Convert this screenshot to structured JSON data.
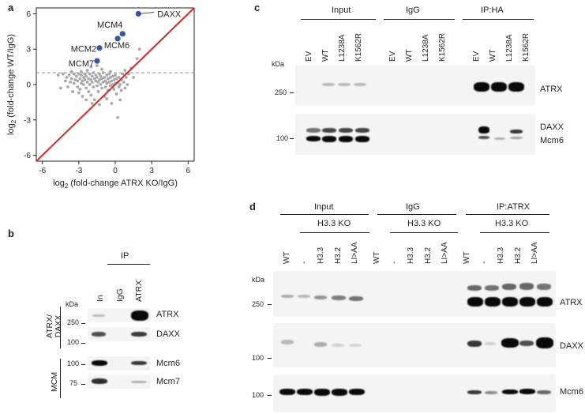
{
  "panels": {
    "a": "a",
    "b": "b",
    "c": "c",
    "d": "d"
  },
  "chart_data": {
    "type": "scatter",
    "xlabel": "log2 (fold-change ATRX KO/IgG)",
    "ylabel": "log2 (fold-change WT/IgG)",
    "xlabel_base": "log",
    "xlabel_sub": "2",
    "xlabel_rest": " (fold-change ATRX KO/IgG)",
    "ylabel_base": "log",
    "ylabel_sub": "2",
    "ylabel_rest": " (fold-change WT/IgG)",
    "xlim": [
      -6.5,
      6.5
    ],
    "ylim": [
      -6.5,
      6.5
    ],
    "xticks": [
      -6,
      -3,
      0,
      3,
      6
    ],
    "yticks": [
      -6,
      -3,
      0,
      3,
      6
    ],
    "threshold_y": 1,
    "diagonal": "y = x",
    "colors": {
      "background": "#a9a9a9",
      "highlight": "#3a57a4",
      "diagonal": "#d42a2a",
      "threshold": "#8c8c8c"
    },
    "highlighted": [
      {
        "name": "DAXX",
        "x": 1.9,
        "y": 6.0
      },
      {
        "name": "MCM4",
        "x": 0.6,
        "y": 4.3
      },
      {
        "name": "MCM6",
        "x": 0.2,
        "y": 3.9
      },
      {
        "name": "MCM2",
        "x": -1.3,
        "y": 3.1
      },
      {
        "name": "MCM7",
        "x": -1.5,
        "y": 2.0
      }
    ],
    "background_points": [
      [
        -4.7,
        0.8
      ],
      [
        -4.5,
        -0.3
      ],
      [
        -4.3,
        0.9
      ],
      [
        -4.1,
        0.3
      ],
      [
        -4.0,
        0.6
      ],
      [
        -3.9,
        -0.2
      ],
      [
        -3.8,
        0.8
      ],
      [
        -3.7,
        0.2
      ],
      [
        -3.6,
        0.5
      ],
      [
        -3.5,
        -0.6
      ],
      [
        -3.4,
        0.9
      ],
      [
        -3.4,
        0.1
      ],
      [
        -3.3,
        0.4
      ],
      [
        -3.2,
        0.7
      ],
      [
        -3.1,
        -0.2
      ],
      [
        -3.1,
        0.3
      ],
      [
        -3.0,
        0.9
      ],
      [
        -2.9,
        0.5
      ],
      [
        -2.9,
        -0.4
      ],
      [
        -2.8,
        0.1
      ],
      [
        -2.8,
        0.8
      ],
      [
        -2.7,
        0.3
      ],
      [
        -2.7,
        -1.0
      ],
      [
        -2.6,
        0.6
      ],
      [
        -2.6,
        0.0
      ],
      [
        -2.5,
        0.9
      ],
      [
        -2.5,
        0.4
      ],
      [
        -2.4,
        -0.3
      ],
      [
        -2.4,
        0.7
      ],
      [
        -2.3,
        0.2
      ],
      [
        -2.3,
        1.2
      ],
      [
        -2.2,
        -0.6
      ],
      [
        -2.2,
        0.5
      ],
      [
        -2.1,
        0.9
      ],
      [
        -2.1,
        0.0
      ],
      [
        -2.0,
        0.4
      ],
      [
        -2.0,
        -0.9
      ],
      [
        -1.9,
        0.7
      ],
      [
        -1.9,
        0.2
      ],
      [
        -1.8,
        -0.2
      ],
      [
        -1.8,
        1.0
      ],
      [
        -1.7,
        0.5
      ],
      [
        -1.7,
        -1.3
      ],
      [
        -1.6,
        0.3
      ],
      [
        -1.6,
        0.8
      ],
      [
        -1.5,
        -0.1
      ],
      [
        -1.5,
        0.6
      ],
      [
        -1.4,
        0.2
      ],
      [
        -1.4,
        -0.6
      ],
      [
        -1.3,
        0.9
      ],
      [
        -1.3,
        0.4
      ],
      [
        -1.2,
        0.0
      ],
      [
        -1.2,
        0.7
      ],
      [
        -1.1,
        -0.3
      ],
      [
        -1.1,
        0.5
      ],
      [
        -1.0,
        1.0
      ],
      [
        -1.0,
        0.2
      ],
      [
        -0.9,
        -1.0
      ],
      [
        -0.9,
        0.6
      ],
      [
        -0.8,
        0.3
      ],
      [
        -0.8,
        -0.2
      ],
      [
        -0.7,
        0.8
      ],
      [
        -0.7,
        0.1
      ],
      [
        -0.6,
        0.5
      ],
      [
        -0.6,
        -0.5
      ],
      [
        -0.5,
        0.9
      ],
      [
        -0.5,
        0.2
      ],
      [
        -0.4,
        -0.1
      ],
      [
        -0.4,
        0.6
      ],
      [
        -0.3,
        0.3
      ],
      [
        -0.3,
        -1.6
      ],
      [
        -0.2,
        0.7
      ],
      [
        -0.2,
        0.0
      ],
      [
        -0.1,
        0.4
      ],
      [
        -0.1,
        -0.4
      ],
      [
        0.0,
        0.8
      ],
      [
        0.0,
        0.1
      ],
      [
        0.1,
        -0.8
      ],
      [
        0.1,
        0.5
      ],
      [
        0.2,
        0.2
      ],
      [
        0.2,
        -2.8
      ],
      [
        0.3,
        -0.2
      ],
      [
        0.3,
        0.6
      ],
      [
        0.4,
        0.0
      ],
      [
        0.5,
        0.4
      ],
      [
        0.5,
        -0.5
      ],
      [
        0.6,
        0.9
      ],
      [
        0.7,
        0.2
      ],
      [
        0.8,
        -0.3
      ],
      [
        0.9,
        0.6
      ],
      [
        1.0,
        0.0
      ],
      [
        1.1,
        0.9
      ],
      [
        1.3,
        1.4
      ],
      [
        1.5,
        0.6
      ],
      [
        1.8,
        2.2
      ],
      [
        2.0,
        3.0
      ],
      [
        -2.4,
        -1.3
      ],
      [
        -3.0,
        -0.7
      ],
      [
        -1.9,
        -1.6
      ],
      [
        -0.7,
        -1.2
      ],
      [
        0.4,
        -1.3
      ],
      [
        -1.3,
        -1.7
      ],
      [
        -2.8,
        1.1
      ],
      [
        -3.6,
        1.1
      ],
      [
        -1.1,
        1.3
      ],
      [
        -0.4,
        1.1
      ],
      [
        0.8,
        1.2
      ],
      [
        -2.0,
        1.5
      ],
      [
        -1.5,
        1.6
      ]
    ]
  },
  "panel_b": {
    "ip_header": "IP",
    "lanes": [
      "In",
      "IgG",
      "ATRX"
    ],
    "kda": "kDa",
    "markers": [
      "250",
      "100",
      "100",
      "75"
    ],
    "groups": [
      "ATRX/ DAXX",
      "MCM"
    ],
    "proteins": [
      "ATRX",
      "DAXX",
      "Mcm6",
      "Mcm7"
    ]
  },
  "panel_c": {
    "groups": [
      "Input",
      "IgG",
      "IP:HA"
    ],
    "lanes": [
      "EV",
      "WT",
      "L1238A",
      "K1562R",
      "EV",
      "WT",
      "L1238A",
      "K1562R",
      "EV",
      "WT",
      "L1238A",
      "K1562R"
    ],
    "kda": "kDa",
    "markers": [
      "250",
      "100"
    ],
    "proteins": [
      "ATRX",
      "DAXX",
      "Mcm6"
    ]
  },
  "panel_d": {
    "groups": [
      "Input",
      "IgG",
      "IP:ATRX"
    ],
    "subgroup": "H3.3 KO",
    "lanes": [
      "WT",
      "-",
      "H3.3",
      "H3.2",
      "LI>AA",
      "WT",
      "-",
      "H3.3",
      "H3.2",
      "LI>AA",
      "WT",
      "-",
      "H3.3",
      "H3.2",
      "LI>AA"
    ],
    "kda": "kDa",
    "markers": [
      "250",
      "100",
      "100"
    ],
    "proteins": [
      "ATRX",
      "DAXX",
      "Mcm6"
    ]
  }
}
